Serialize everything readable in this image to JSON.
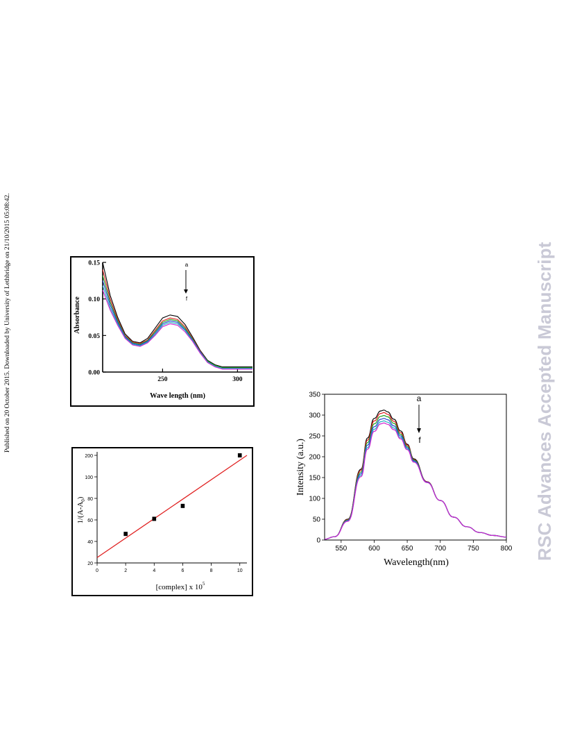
{
  "sidebar_left": "Published on 20 October 2015. Downloaded by University of Lethbridge on 21/10/2015 05:08:42.",
  "sidebar_right": "RSC Advances Accepted Manuscript",
  "chart_data": [
    {
      "id": "absorption",
      "type": "line",
      "title": "",
      "xlabel": "Wave length (nm)",
      "ylabel": "Absorbance",
      "xlim": [
        210,
        310
      ],
      "ylim": [
        0,
        0.15
      ],
      "xticks": [
        250,
        300
      ],
      "yticks": [
        0.0,
        0.05,
        0.1,
        0.15
      ],
      "ytick_labels": [
        "0.00",
        "0.05",
        "0.10",
        "0.15"
      ],
      "annotation_top": "a",
      "annotation_bottom": "f",
      "series": [
        {
          "color": "#000000",
          "x": [
            210,
            215,
            220,
            225,
            230,
            235,
            240,
            245,
            250,
            255,
            260,
            265,
            270,
            275,
            280,
            285,
            290,
            295,
            300,
            305,
            310
          ],
          "y": [
            0.15,
            0.105,
            0.075,
            0.052,
            0.042,
            0.04,
            0.046,
            0.06,
            0.074,
            0.078,
            0.076,
            0.065,
            0.048,
            0.03,
            0.016,
            0.01,
            0.007,
            0.007,
            0.007,
            0.007,
            0.007
          ]
        },
        {
          "color": "#e02020",
          "x": [
            210,
            215,
            220,
            225,
            230,
            235,
            240,
            245,
            250,
            255,
            260,
            265,
            270,
            275,
            280,
            285,
            290,
            295,
            300,
            305,
            310
          ],
          "y": [
            0.14,
            0.1,
            0.072,
            0.05,
            0.041,
            0.039,
            0.044,
            0.057,
            0.07,
            0.074,
            0.072,
            0.062,
            0.046,
            0.029,
            0.015,
            0.009,
            0.006,
            0.006,
            0.006,
            0.006,
            0.006
          ]
        },
        {
          "color": "#20a020",
          "x": [
            210,
            215,
            220,
            225,
            230,
            235,
            240,
            245,
            250,
            255,
            260,
            265,
            270,
            275,
            280,
            285,
            290,
            295,
            300,
            305,
            310
          ],
          "y": [
            0.132,
            0.096,
            0.07,
            0.049,
            0.04,
            0.038,
            0.043,
            0.055,
            0.068,
            0.072,
            0.07,
            0.06,
            0.045,
            0.028,
            0.015,
            0.009,
            0.006,
            0.006,
            0.006,
            0.006,
            0.006
          ]
        },
        {
          "color": "#2040d0",
          "x": [
            210,
            215,
            220,
            225,
            230,
            235,
            240,
            245,
            250,
            255,
            260,
            265,
            270,
            275,
            280,
            285,
            290,
            295,
            300,
            305,
            310
          ],
          "y": [
            0.125,
            0.092,
            0.068,
            0.048,
            0.039,
            0.037,
            0.042,
            0.053,
            0.066,
            0.07,
            0.068,
            0.058,
            0.044,
            0.028,
            0.014,
            0.008,
            0.005,
            0.005,
            0.005,
            0.005,
            0.005
          ]
        },
        {
          "color": "#20b0c0",
          "x": [
            210,
            215,
            220,
            225,
            230,
            235,
            240,
            245,
            250,
            255,
            260,
            265,
            270,
            275,
            280,
            285,
            290,
            295,
            300,
            305,
            310
          ],
          "y": [
            0.118,
            0.088,
            0.066,
            0.047,
            0.038,
            0.036,
            0.041,
            0.051,
            0.064,
            0.068,
            0.066,
            0.057,
            0.043,
            0.027,
            0.014,
            0.008,
            0.005,
            0.005,
            0.005,
            0.005,
            0.005
          ]
        },
        {
          "color": "#d020d0",
          "x": [
            210,
            215,
            220,
            225,
            230,
            235,
            240,
            245,
            250,
            255,
            260,
            265,
            270,
            275,
            280,
            285,
            290,
            295,
            300,
            305,
            310
          ],
          "y": [
            0.112,
            0.085,
            0.064,
            0.046,
            0.037,
            0.035,
            0.04,
            0.05,
            0.062,
            0.066,
            0.064,
            0.055,
            0.042,
            0.026,
            0.013,
            0.007,
            0.004,
            0.004,
            0.004,
            0.004,
            0.004
          ]
        }
      ]
    },
    {
      "id": "binding",
      "type": "scatter",
      "title": "",
      "xlabel": "[complex] x 10",
      "xlabel_sup": "5",
      "ylabel": "1/(A-A",
      "ylabel_sub": "0",
      "ylabel_end": ")",
      "xlim": [
        0,
        10.5
      ],
      "ylim": [
        20,
        205
      ],
      "xticks": [
        0,
        2,
        4,
        6,
        8,
        10
      ],
      "yticks": [
        20,
        40,
        60,
        80,
        100,
        200
      ],
      "points": {
        "x": [
          2,
          4,
          6,
          10
        ],
        "y": [
          47,
          61,
          73,
          200
        ]
      },
      "fit": {
        "color": "#e02020",
        "x": [
          0,
          10.5
        ],
        "y": [
          25,
          204
        ]
      }
    },
    {
      "id": "emission",
      "type": "line",
      "title": "",
      "xlabel": "Wavelength(nm)",
      "ylabel": "Intensity (a.u.)",
      "xlim": [
        525,
        800
      ],
      "ylim": [
        0,
        350
      ],
      "xticks": [
        550,
        600,
        650,
        700,
        750,
        800
      ],
      "yticks": [
        0,
        50,
        100,
        150,
        200,
        250,
        300,
        350
      ],
      "annotation_top": "a",
      "annotation_bottom": "f",
      "series": [
        {
          "color": "#000000",
          "x": [
            525,
            540,
            560,
            580,
            590,
            600,
            610,
            615,
            620,
            630,
            640,
            650,
            660,
            680,
            700,
            720,
            740,
            760,
            780,
            800
          ],
          "y": [
            2,
            8,
            50,
            170,
            245,
            292,
            310,
            312,
            308,
            290,
            262,
            230,
            195,
            140,
            95,
            55,
            32,
            18,
            11,
            7
          ]
        },
        {
          "color": "#e02020",
          "x": [
            525,
            540,
            560,
            580,
            590,
            600,
            610,
            615,
            620,
            630,
            640,
            650,
            660,
            680,
            700,
            720,
            740,
            760,
            780,
            800
          ],
          "y": [
            2,
            8,
            49,
            167,
            240,
            286,
            304,
            306,
            302,
            285,
            258,
            228,
            193,
            140,
            95,
            55,
            32,
            18,
            11,
            7
          ]
        },
        {
          "color": "#20a020",
          "x": [
            525,
            540,
            560,
            580,
            590,
            600,
            610,
            615,
            620,
            630,
            640,
            650,
            660,
            680,
            700,
            720,
            740,
            760,
            780,
            800
          ],
          "y": [
            2,
            8,
            48,
            163,
            234,
            279,
            297,
            299,
            296,
            280,
            254,
            225,
            192,
            139,
            95,
            55,
            32,
            18,
            11,
            7
          ]
        },
        {
          "color": "#2040d0",
          "x": [
            525,
            540,
            560,
            580,
            590,
            600,
            610,
            615,
            620,
            630,
            640,
            650,
            660,
            680,
            700,
            720,
            740,
            760,
            780,
            800
          ],
          "y": [
            2,
            8,
            47,
            159,
            228,
            272,
            290,
            292,
            289,
            274,
            250,
            222,
            190,
            139,
            95,
            55,
            32,
            18,
            11,
            7
          ]
        },
        {
          "color": "#20b0c0",
          "x": [
            525,
            540,
            560,
            580,
            590,
            600,
            610,
            615,
            620,
            630,
            640,
            650,
            660,
            680,
            700,
            720,
            740,
            760,
            780,
            800
          ],
          "y": [
            2,
            8,
            46,
            155,
            222,
            266,
            284,
            286,
            283,
            269,
            246,
            219,
            188,
            138,
            95,
            55,
            32,
            18,
            11,
            7
          ]
        },
        {
          "color": "#d020d0",
          "x": [
            525,
            540,
            560,
            580,
            590,
            600,
            610,
            615,
            620,
            630,
            640,
            650,
            660,
            680,
            700,
            720,
            740,
            760,
            780,
            800
          ],
          "y": [
            2,
            8,
            45,
            152,
            218,
            261,
            279,
            281,
            278,
            265,
            243,
            217,
            187,
            138,
            95,
            55,
            32,
            18,
            11,
            7
          ]
        }
      ]
    }
  ]
}
